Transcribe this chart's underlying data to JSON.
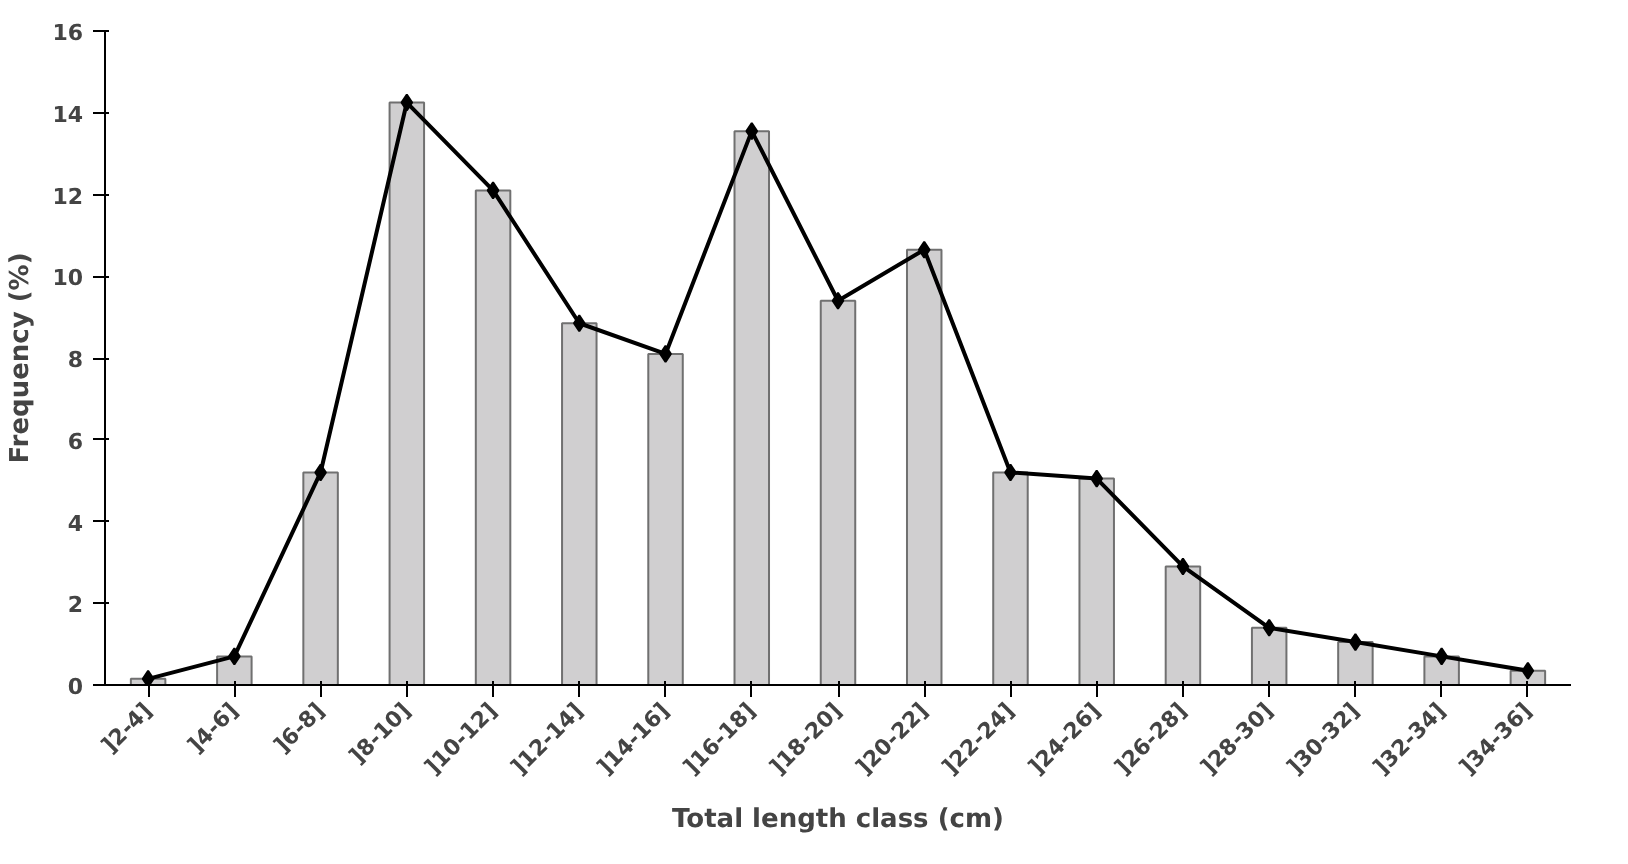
{
  "chart_data": {
    "type": "bar",
    "xlabel": "Total length class (cm)",
    "ylabel": "Frequency (%)",
    "categories": [
      "]2-4]",
      "]4-6]",
      "]6-8]",
      "]8-10]",
      "]10-12]",
      "]12-14]",
      "]14-16]",
      "]16-18]",
      "]18-20]",
      "]20-22]",
      "]22-24]",
      "]24-26]",
      "]26-28]",
      "]28-30]",
      "]30-32]",
      "]32-34]",
      "]34-36]"
    ],
    "series": [
      {
        "color": "#d0cfd0",
        "values": [
          0.15,
          0.7,
          5.2,
          14.25,
          12.1,
          8.85,
          8.1,
          13.55,
          9.4,
          10.65,
          5.2,
          5.05,
          2.9,
          1.4,
          1.05,
          0.7,
          0.35
        ]
      },
      {
        "type": "line",
        "color": "#000000",
        "marker": "diamond",
        "values": [
          0.15,
          0.7,
          5.2,
          14.25,
          12.1,
          8.85,
          8.1,
          13.55,
          9.4,
          10.65,
          5.2,
          5.05,
          2.9,
          1.4,
          1.05,
          0.7,
          0.35
        ]
      }
    ],
    "ylim": [
      0,
      16
    ],
    "yticks": [
      0,
      2,
      4,
      6,
      8,
      10,
      12,
      14,
      16
    ],
    "grid": false
  }
}
